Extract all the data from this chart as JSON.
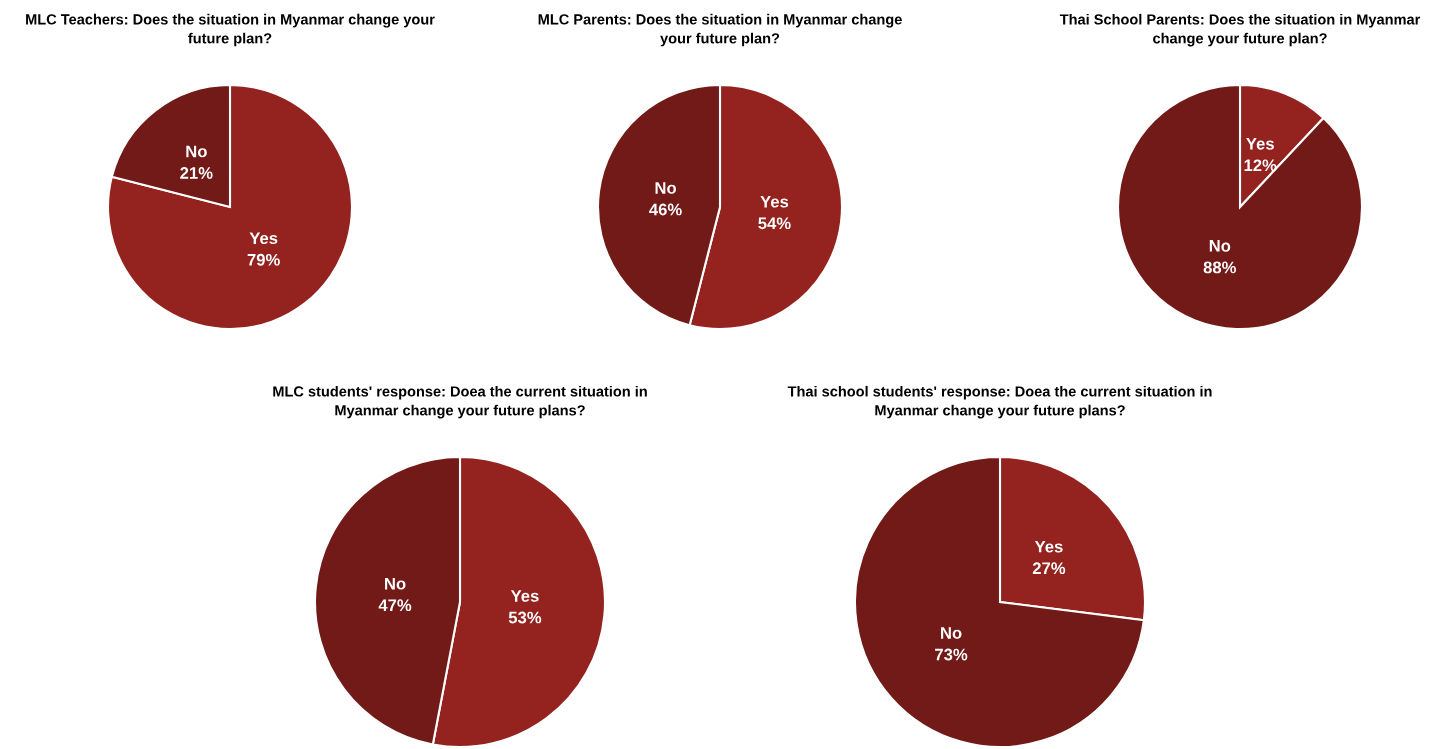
{
  "chart_data": [
    {
      "type": "pie",
      "title": "MLC Teachers: Does the situation in Myanmar change your\nfuture plan?",
      "categories": [
        "Yes",
        "No"
      ],
      "values": [
        79,
        21
      ],
      "value_labels": [
        "79%",
        "21%"
      ],
      "colors": [
        "#94231f",
        "#721a18"
      ]
    },
    {
      "type": "pie",
      "title": "MLC Parents: Does the situation in Myanmar change\nyour future plan?",
      "categories": [
        "Yes",
        "No"
      ],
      "values": [
        54,
        46
      ],
      "value_labels": [
        "54%",
        "46%"
      ],
      "colors": [
        "#94231f",
        "#721a18"
      ]
    },
    {
      "type": "pie",
      "title": "Thai School Parents: Does the situation in Myanmar\nchange your future plan?",
      "categories": [
        "Yes",
        "No"
      ],
      "values": [
        12,
        88
      ],
      "value_labels": [
        "12%",
        "88%"
      ],
      "colors": [
        "#94231f",
        "#721a18"
      ]
    },
    {
      "type": "pie",
      "title": "MLC students' response: Doea the current situation in\nMyanmar change your future plans?",
      "categories": [
        "Yes",
        "No"
      ],
      "values": [
        53,
        47
      ],
      "value_labels": [
        "53%",
        "47%"
      ],
      "colors": [
        "#94231f",
        "#721a18"
      ]
    },
    {
      "type": "pie",
      "title": "Thai school students' response: Doea the current situation in\nMyanmar change your future plans?",
      "categories": [
        "Yes",
        "No"
      ],
      "values": [
        27,
        73
      ],
      "value_labels": [
        "27%",
        "73%"
      ],
      "colors": [
        "#94231f",
        "#721a18"
      ]
    }
  ]
}
